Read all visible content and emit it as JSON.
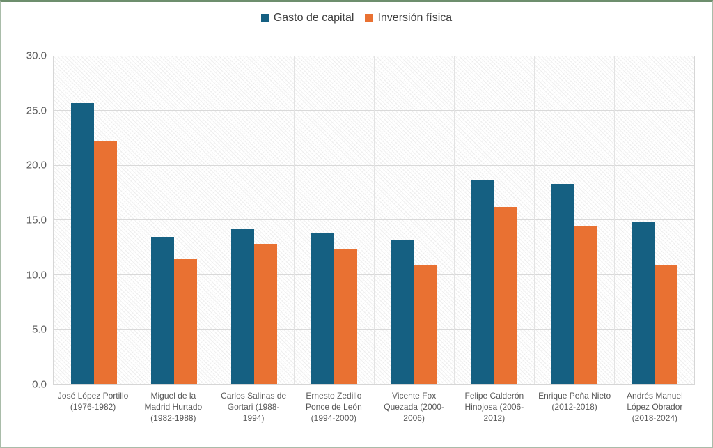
{
  "legend": {
    "items": [
      {
        "label": "Gasto de capital",
        "color": "#156082"
      },
      {
        "label": "Inversión física",
        "color": "#E97132"
      }
    ]
  },
  "chart_data": {
    "type": "bar",
    "title": "",
    "xlabel": "",
    "ylabel": "",
    "ylim": [
      0,
      30
    ],
    "ytick_labels": [
      "0.0",
      "5.0",
      "10.0",
      "15.0",
      "20.0",
      "25.0",
      "30.0"
    ],
    "ytick_values": [
      0,
      5,
      10,
      15,
      20,
      25,
      30
    ],
    "grid": "horizontal gridlines every 5 units, vertical gridlines at category boundaries, light gray",
    "plot_background": "light gray diagonal hatch pattern on white",
    "legend_position": "top-center",
    "categories": [
      "José López Portillo\n(1976-1982)",
      "Miguel de la\nMadrid Hurtado\n(1982-1988)",
      "Carlos Salinas de\nGortari (1988-\n1994)",
      "Ernesto Zedillo\nPonce de León\n(1994-2000)",
      "Vicente Fox\nQuezada (2000-\n2006)",
      "Felipe Calderón\nHinojosa (2006-\n2012)",
      "Enrique Peña Nieto\n(2012-2018)",
      "Andrés Manuel\nLópez Obrador\n(2018-2024)"
    ],
    "series": [
      {
        "name": "Gasto de capital",
        "color": "#156082",
        "values": [
          25.7,
          13.5,
          14.2,
          13.8,
          13.2,
          18.7,
          18.3,
          14.8
        ]
      },
      {
        "name": "Inversión física",
        "color": "#E97132",
        "values": [
          22.3,
          11.4,
          12.8,
          12.4,
          10.9,
          16.2,
          14.5,
          10.9
        ]
      }
    ]
  },
  "colors": {
    "axis_text": "#595959",
    "legend_text": "#3f3f3f",
    "gridline": "#d9d9d9",
    "frame_border_top": "#6d8e6d",
    "frame_border_sides": "#a9bca9"
  }
}
